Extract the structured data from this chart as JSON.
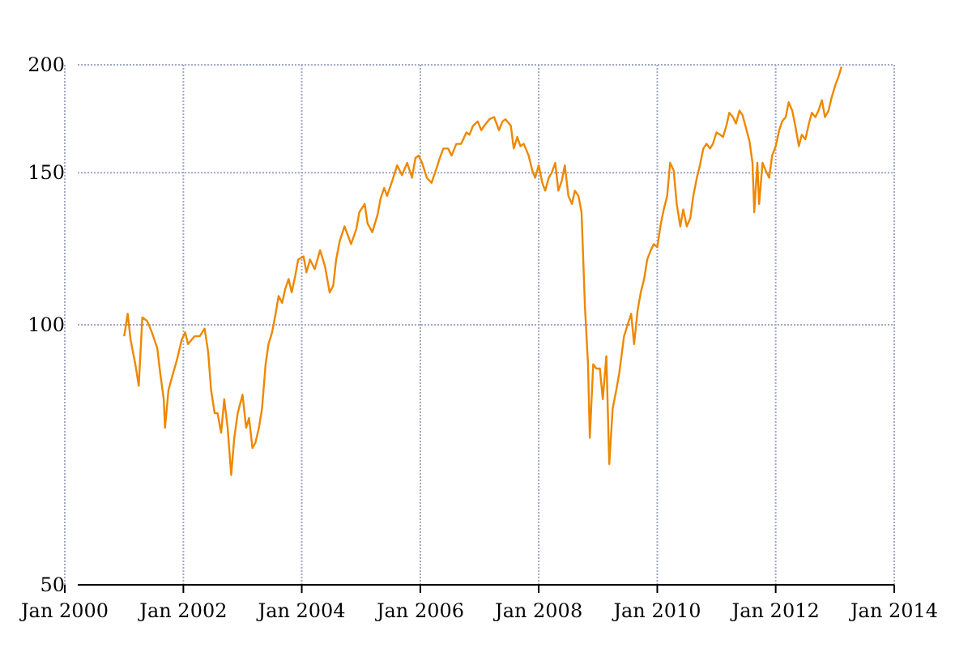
{
  "chart_data": {
    "type": "line",
    "log": "y",
    "grid": true,
    "legend": false,
    "marker": "none",
    "line_style": "solid",
    "xlim": [
      "2000-01-01",
      "2014-01-01"
    ],
    "xticks": [
      {
        "value": "2000-01-01",
        "label": "Jan 2000"
      },
      {
        "value": "2002-01-01",
        "label": "Jan 2002"
      },
      {
        "value": "2004-01-01",
        "label": "Jan 2004"
      },
      {
        "value": "2006-01-01",
        "label": "Jan 2006"
      },
      {
        "value": "2008-01-01",
        "label": "Jan 2008"
      },
      {
        "value": "2010-01-01",
        "label": "Jan 2010"
      },
      {
        "value": "2012-01-01",
        "label": "Jan 2012"
      },
      {
        "value": "2014-01-01",
        "label": "Jan 2014"
      }
    ],
    "ylim": [
      50,
      200
    ],
    "yticks": [
      50,
      100,
      150,
      200
    ],
    "series": [
      {
        "color": "#ee8800",
        "x": [
          "2001-01-01",
          "2001-01-23",
          "2001-02-10",
          "2001-03-11",
          "2001-04-01",
          "2001-04-23",
          "2001-05-23",
          "2001-06-21",
          "2001-07-24",
          "2001-08-11",
          "2001-09-02",
          "2001-09-10",
          "2001-10-01",
          "2001-10-23",
          "2001-11-22",
          "2001-12-21",
          "2002-01-12",
          "2002-01-30",
          "2002-03-11",
          "2002-04-12",
          "2002-05-12",
          "2002-06-03",
          "2002-06-21",
          "2002-07-13",
          "2002-07-31",
          "2002-08-22",
          "2002-09-10",
          "2002-10-01",
          "2002-10-23",
          "2002-11-11",
          "2002-12-02",
          "2003-01-01",
          "2003-01-23",
          "2003-02-10",
          "2003-03-03",
          "2003-03-21",
          "2003-04-12",
          "2003-05-01",
          "2003-05-23",
          "2003-06-10",
          "2003-07-02",
          "2003-07-24",
          "2003-08-11",
          "2003-09-02",
          "2003-09-21",
          "2003-10-12",
          "2003-10-31",
          "2003-11-22",
          "2003-12-10",
          "2004-01-12",
          "2004-01-30",
          "2004-02-21",
          "2004-03-21",
          "2004-04-23",
          "2004-05-23",
          "2004-06-21",
          "2004-07-13",
          "2004-07-31",
          "2004-08-22",
          "2004-09-21",
          "2004-10-31",
          "2004-12-02",
          "2004-12-21",
          "2005-01-23",
          "2005-02-10",
          "2005-03-11",
          "2005-04-12",
          "2005-05-01",
          "2005-05-23",
          "2005-06-10",
          "2005-07-13",
          "2005-08-11",
          "2005-09-10",
          "2005-10-12",
          "2005-11-11",
          "2005-12-02",
          "2005-12-21",
          "2006-01-12",
          "2006-02-10",
          "2006-03-11",
          "2006-04-12",
          "2006-05-01",
          "2006-05-23",
          "2006-06-21",
          "2006-07-13",
          "2006-08-11",
          "2006-09-10",
          "2006-10-12",
          "2006-10-31",
          "2006-11-22",
          "2006-12-21",
          "2007-01-12",
          "2007-01-30",
          "2007-03-03",
          "2007-04-01",
          "2007-05-01",
          "2007-05-23",
          "2007-06-10",
          "2007-07-13",
          "2007-07-31",
          "2007-08-22",
          "2007-09-10",
          "2007-10-01",
          "2007-10-31",
          "2007-11-22",
          "2007-12-10",
          "2008-01-01",
          "2008-01-23",
          "2008-02-10",
          "2008-03-03",
          "2008-03-21",
          "2008-04-12",
          "2008-05-01",
          "2008-05-23",
          "2008-06-10",
          "2008-07-02",
          "2008-07-24",
          "2008-08-11",
          "2008-09-02",
          "2008-09-21",
          "2008-10-12",
          "2008-10-31",
          "2008-11-11",
          "2008-12-02",
          "2008-12-21",
          "2009-01-12",
          "2009-01-30",
          "2009-02-21",
          "2009-03-11",
          "2009-04-01",
          "2009-04-23",
          "2009-05-12",
          "2009-06-10",
          "2009-07-02",
          "2009-07-24",
          "2009-08-11",
          "2009-09-02",
          "2009-09-21",
          "2009-10-12",
          "2009-10-31",
          "2009-11-22",
          "2009-12-10",
          "2010-01-01",
          "2010-01-23",
          "2010-02-10",
          "2010-03-03",
          "2010-03-21",
          "2010-04-12",
          "2010-05-01",
          "2010-05-23",
          "2010-06-10",
          "2010-07-02",
          "2010-07-24",
          "2010-08-11",
          "2010-09-02",
          "2010-09-21",
          "2010-10-12",
          "2010-10-31",
          "2010-11-22",
          "2010-12-10",
          "2011-01-01",
          "2011-01-23",
          "2011-02-10",
          "2011-03-03",
          "2011-03-21",
          "2011-04-12",
          "2011-05-01",
          "2011-05-23",
          "2011-06-10",
          "2011-07-02",
          "2011-07-24",
          "2011-08-11",
          "2011-08-22",
          "2011-09-10",
          "2011-09-21",
          "2011-10-12",
          "2011-10-31",
          "2011-11-22",
          "2011-12-10",
          "2012-01-01",
          "2012-01-23",
          "2012-02-10",
          "2012-03-03",
          "2012-03-21",
          "2012-04-12",
          "2012-05-01",
          "2012-05-23",
          "2012-06-10",
          "2012-07-02",
          "2012-07-24",
          "2012-08-11",
          "2012-09-02",
          "2012-09-21",
          "2012-10-12",
          "2012-10-31",
          "2012-11-22",
          "2012-12-10",
          "2013-01-01",
          "2013-01-23",
          "2013-02-10"
        ],
        "values": [
          97,
          103,
          96,
          90,
          85,
          102,
          101,
          98,
          94,
          88,
          82,
          76,
          84,
          87,
          91,
          96,
          98,
          95,
          97,
          97,
          99,
          93,
          84,
          79,
          79,
          75,
          82,
          76,
          67,
          74,
          79,
          83,
          76,
          78,
          72,
          73,
          76,
          80,
          90,
          95,
          98,
          103,
          108,
          106,
          110,
          113,
          109,
          114,
          119,
          120,
          115,
          119,
          116,
          122,
          117,
          109,
          111,
          119,
          125,
          130,
          124,
          129,
          135,
          138,
          131,
          128,
          134,
          140,
          144,
          141,
          147,
          153,
          149,
          154,
          148,
          156,
          157,
          154,
          148,
          146,
          152,
          156,
          160,
          160,
          157,
          162,
          162,
          167,
          166,
          170,
          172,
          168,
          170,
          173,
          174,
          168,
          172,
          173,
          170,
          160,
          165,
          161,
          162,
          157,
          151,
          148,
          153,
          146,
          143,
          148,
          150,
          154,
          143,
          147,
          153,
          141,
          138,
          143,
          141,
          135,
          105,
          90,
          74,
          90,
          89,
          89,
          82,
          92,
          69,
          80,
          84,
          88,
          97,
          100,
          103,
          95,
          104,
          109,
          113,
          119,
          122,
          124,
          123,
          131,
          136,
          141,
          154,
          151,
          138,
          130,
          136,
          130,
          133,
          141,
          148,
          153,
          160,
          162,
          160,
          162,
          167,
          166,
          165,
          170,
          176,
          174,
          171,
          177,
          175,
          169,
          163,
          154,
          135,
          154,
          138,
          154,
          151,
          148,
          157,
          161,
          168,
          172,
          174,
          181,
          177,
          170,
          161,
          166,
          164,
          171,
          176,
          174,
          177,
          182,
          174,
          177,
          183,
          189,
          194,
          199
        ]
      }
    ]
  }
}
